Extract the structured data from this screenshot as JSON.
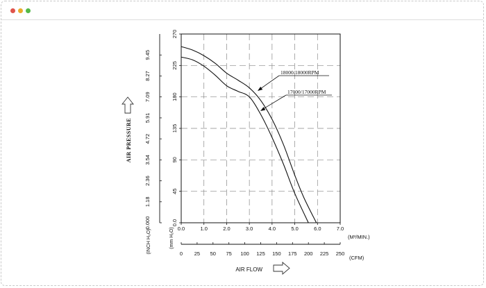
{
  "window": {
    "controls": {
      "close_color": "#e0544b",
      "minimize_color": "#e9ac2c",
      "maximize_color": "#54b948"
    }
  },
  "chart_data": {
    "type": "line",
    "title": "",
    "ylabel": "AIR PRESSURE",
    "xlabel": "AIR FLOW",
    "x_unit_primary": "(M³/MIN.)",
    "x_unit_secondary": "(CFM)",
    "y_unit_primary": "(mm H₂O)",
    "y_unit_secondary": "(INCH H₂O)",
    "xlim": [
      0,
      7
    ],
    "ylim": [
      0,
      270
    ],
    "x_ticks": [
      "0.0",
      "1.0",
      "2.0",
      "3.0",
      "4.0",
      "5.0",
      "6.0",
      "7.0"
    ],
    "x2_ticks": [
      "0",
      "25",
      "50",
      "75",
      "100",
      "125",
      "150",
      "175",
      "200",
      "225",
      "250"
    ],
    "x2_max": 250,
    "y_ticks": [
      "0.0",
      "45",
      "90",
      "135",
      "180",
      "225",
      "270"
    ],
    "y2_ticks": [
      "0.000",
      "1.18",
      "2.36",
      "3.54",
      "4.72",
      "5.91",
      "7.09",
      "8.27",
      "9.45"
    ],
    "grid": true,
    "series": [
      {
        "name": "18000/18000RPM",
        "x": [
          0,
          0.5,
          1.0,
          1.5,
          2.0,
          2.5,
          3.0,
          3.5,
          4.0,
          4.5,
          5.0,
          5.4,
          5.95
        ],
        "y": [
          252,
          247,
          239,
          228,
          214,
          204,
          193,
          175,
          148,
          112,
          68,
          36,
          0
        ]
      },
      {
        "name": "17000/17000RPM",
        "x": [
          0,
          0.5,
          1.0,
          1.5,
          2.0,
          2.5,
          3.0,
          3.5,
          4.0,
          4.5,
          5.0,
          5.6
        ],
        "y": [
          237,
          233,
          224,
          211,
          196,
          188,
          180,
          155,
          122,
          84,
          42,
          0
        ]
      }
    ]
  }
}
